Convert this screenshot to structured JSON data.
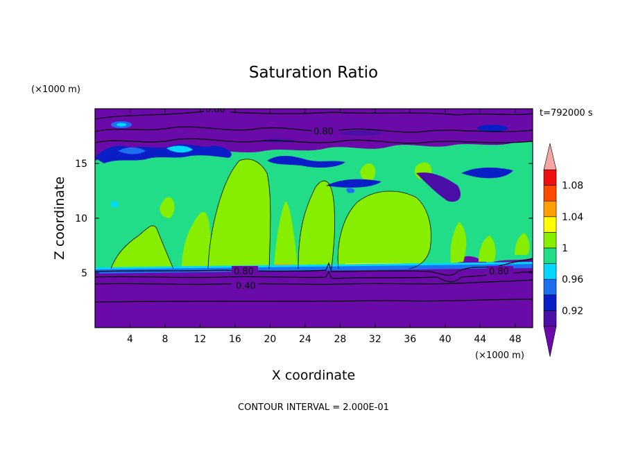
{
  "chart_data": {
    "type": "contour",
    "title": "Saturation Ratio",
    "xlabel": "X coordinate",
    "ylabel": "Z coordinate",
    "x_unit": "(×1000 m)",
    "y_unit": "(×1000 m)",
    "time_label": "t=792000 s",
    "footer": "CONTOUR INTERVAL = 2.000E-01",
    "xlim": [
      0,
      50
    ],
    "ylim": [
      0,
      20
    ],
    "x_ticks": [
      4,
      8,
      12,
      16,
      20,
      24,
      28,
      32,
      36,
      40,
      44,
      48
    ],
    "y_ticks": [
      5,
      10,
      15
    ],
    "colorbar": {
      "levels": [
        0.9,
        0.92,
        0.94,
        0.96,
        0.98,
        1.0,
        1.02,
        1.04,
        1.06,
        1.08,
        1.1
      ],
      "tick_labels": [
        "0.92",
        "0.96",
        "1",
        "1.04",
        "1.08"
      ],
      "tick_values": [
        0.92,
        0.96,
        1.0,
        1.04,
        1.08
      ],
      "colors": {
        "under": "#6a0aa8",
        "0.90-0.92": "#4b0fa8",
        "0.92-0.94": "#0a1ec8",
        "0.94-0.96": "#1e6ef0",
        "0.96-0.98": "#00d8ff",
        "0.98-1.00": "#22dd88",
        "1.00-1.02": "#88ee00",
        "1.02-1.04": "#ffff00",
        "1.04-1.06": "#ffa000",
        "1.06-1.08": "#ff4a00",
        "1.08-1.10": "#ee1010",
        "over": "#f4a6a6"
      }
    },
    "contour_labels": [
      {
        "text": "0.80",
        "x": 14,
        "z": 19.8
      },
      {
        "text": "0.80",
        "x": 26,
        "z": 17.8
      },
      {
        "text": "0.80",
        "x": 17.5,
        "z": 5.0
      },
      {
        "text": "0.40",
        "x": 17.5,
        "z": 3.8
      },
      {
        "text": "0.80",
        "x": 46,
        "z": 5.0
      }
    ]
  }
}
